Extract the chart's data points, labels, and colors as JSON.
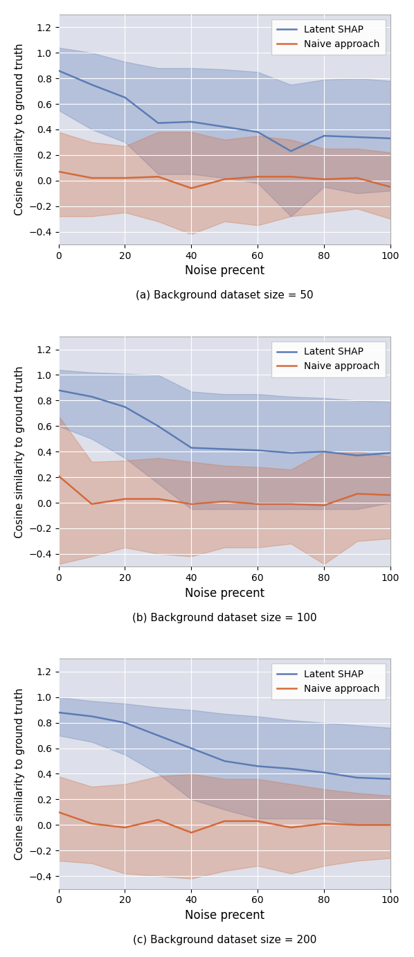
{
  "subplots": [
    {
      "caption": "(a) Background dataset size = 50",
      "x": [
        0,
        10,
        20,
        30,
        40,
        50,
        60,
        70,
        80,
        90,
        100
      ],
      "latent_mean": [
        0.86,
        0.75,
        0.65,
        0.45,
        0.46,
        0.42,
        0.38,
        0.23,
        0.35,
        0.34,
        0.33
      ],
      "latent_upper": [
        1.04,
        1.0,
        0.93,
        0.88,
        0.88,
        0.87,
        0.85,
        0.75,
        0.79,
        0.8,
        0.78
      ],
      "latent_lower": [
        0.55,
        0.4,
        0.3,
        0.05,
        0.05,
        0.02,
        -0.02,
        -0.28,
        -0.05,
        -0.1,
        -0.08
      ],
      "naive_mean": [
        0.07,
        0.02,
        0.02,
        0.03,
        -0.06,
        0.01,
        0.03,
        0.03,
        0.01,
        0.02,
        -0.05
      ],
      "naive_upper": [
        0.38,
        0.3,
        0.27,
        0.38,
        0.38,
        0.32,
        0.35,
        0.32,
        0.25,
        0.25,
        0.22
      ],
      "naive_lower": [
        -0.28,
        -0.28,
        -0.25,
        -0.32,
        -0.42,
        -0.32,
        -0.35,
        -0.28,
        -0.25,
        -0.22,
        -0.3
      ]
    },
    {
      "caption": "(b) Background dataset size = 100",
      "x": [
        0,
        10,
        20,
        30,
        40,
        50,
        60,
        70,
        80,
        90,
        100
      ],
      "latent_mean": [
        0.88,
        0.83,
        0.75,
        0.6,
        0.43,
        0.42,
        0.41,
        0.39,
        0.4,
        0.37,
        0.39
      ],
      "latent_upper": [
        1.04,
        1.02,
        1.01,
        1.0,
        0.87,
        0.85,
        0.85,
        0.83,
        0.82,
        0.8,
        0.79
      ],
      "latent_lower": [
        0.6,
        0.5,
        0.35,
        0.15,
        -0.05,
        -0.05,
        -0.05,
        -0.05,
        -0.05,
        -0.05,
        0.0
      ],
      "naive_mean": [
        0.21,
        -0.01,
        0.03,
        0.03,
        -0.01,
        0.01,
        -0.01,
        -0.01,
        -0.02,
        0.07,
        0.06
      ],
      "naive_upper": [
        0.68,
        0.32,
        0.33,
        0.35,
        0.32,
        0.29,
        0.28,
        0.26,
        0.4,
        0.4,
        0.36
      ],
      "naive_lower": [
        -0.48,
        -0.42,
        -0.35,
        -0.4,
        -0.42,
        -0.35,
        -0.35,
        -0.32,
        -0.48,
        -0.3,
        -0.28
      ]
    },
    {
      "caption": "(c) Background dataset size = 200",
      "x": [
        0,
        10,
        20,
        30,
        40,
        50,
        60,
        70,
        80,
        90,
        100
      ],
      "latent_mean": [
        0.88,
        0.85,
        0.8,
        0.7,
        0.6,
        0.5,
        0.46,
        0.44,
        0.41,
        0.37,
        0.36
      ],
      "latent_upper": [
        1.0,
        0.97,
        0.95,
        0.92,
        0.9,
        0.87,
        0.85,
        0.82,
        0.8,
        0.78,
        0.76
      ],
      "latent_lower": [
        0.7,
        0.65,
        0.55,
        0.4,
        0.2,
        0.12,
        0.05,
        0.05,
        0.05,
        0.0,
        0.0
      ],
      "naive_mean": [
        0.1,
        0.01,
        -0.02,
        0.04,
        -0.06,
        0.03,
        0.03,
        -0.02,
        0.01,
        0.0,
        0.0
      ],
      "naive_upper": [
        0.38,
        0.3,
        0.32,
        0.38,
        0.4,
        0.36,
        0.36,
        0.32,
        0.28,
        0.25,
        0.23
      ],
      "naive_lower": [
        -0.28,
        -0.3,
        -0.38,
        -0.4,
        -0.42,
        -0.36,
        -0.32,
        -0.38,
        -0.32,
        -0.28,
        -0.26
      ]
    }
  ],
  "latent_color": "#5b7bb5",
  "naive_color": "#d4693a",
  "latent_fill_alpha": 0.3,
  "naive_fill_alpha": 0.3,
  "line_width": 1.8,
  "xlabel": "Noise precent",
  "ylabel": "Cosine similarity to ground truth",
  "ylim": [
    -0.5,
    1.3
  ],
  "yticks": [
    -0.4,
    -0.2,
    0.0,
    0.2,
    0.4,
    0.6,
    0.8,
    1.0,
    1.2
  ],
  "xticks": [
    0,
    20,
    40,
    60,
    80,
    100
  ],
  "legend_labels": [
    "Latent SHAP",
    "Naive approach"
  ],
  "background_color": "#dde0ea",
  "grid_color": "white",
  "grid_linewidth": 0.8,
  "spine_color": "#aaaaaa"
}
